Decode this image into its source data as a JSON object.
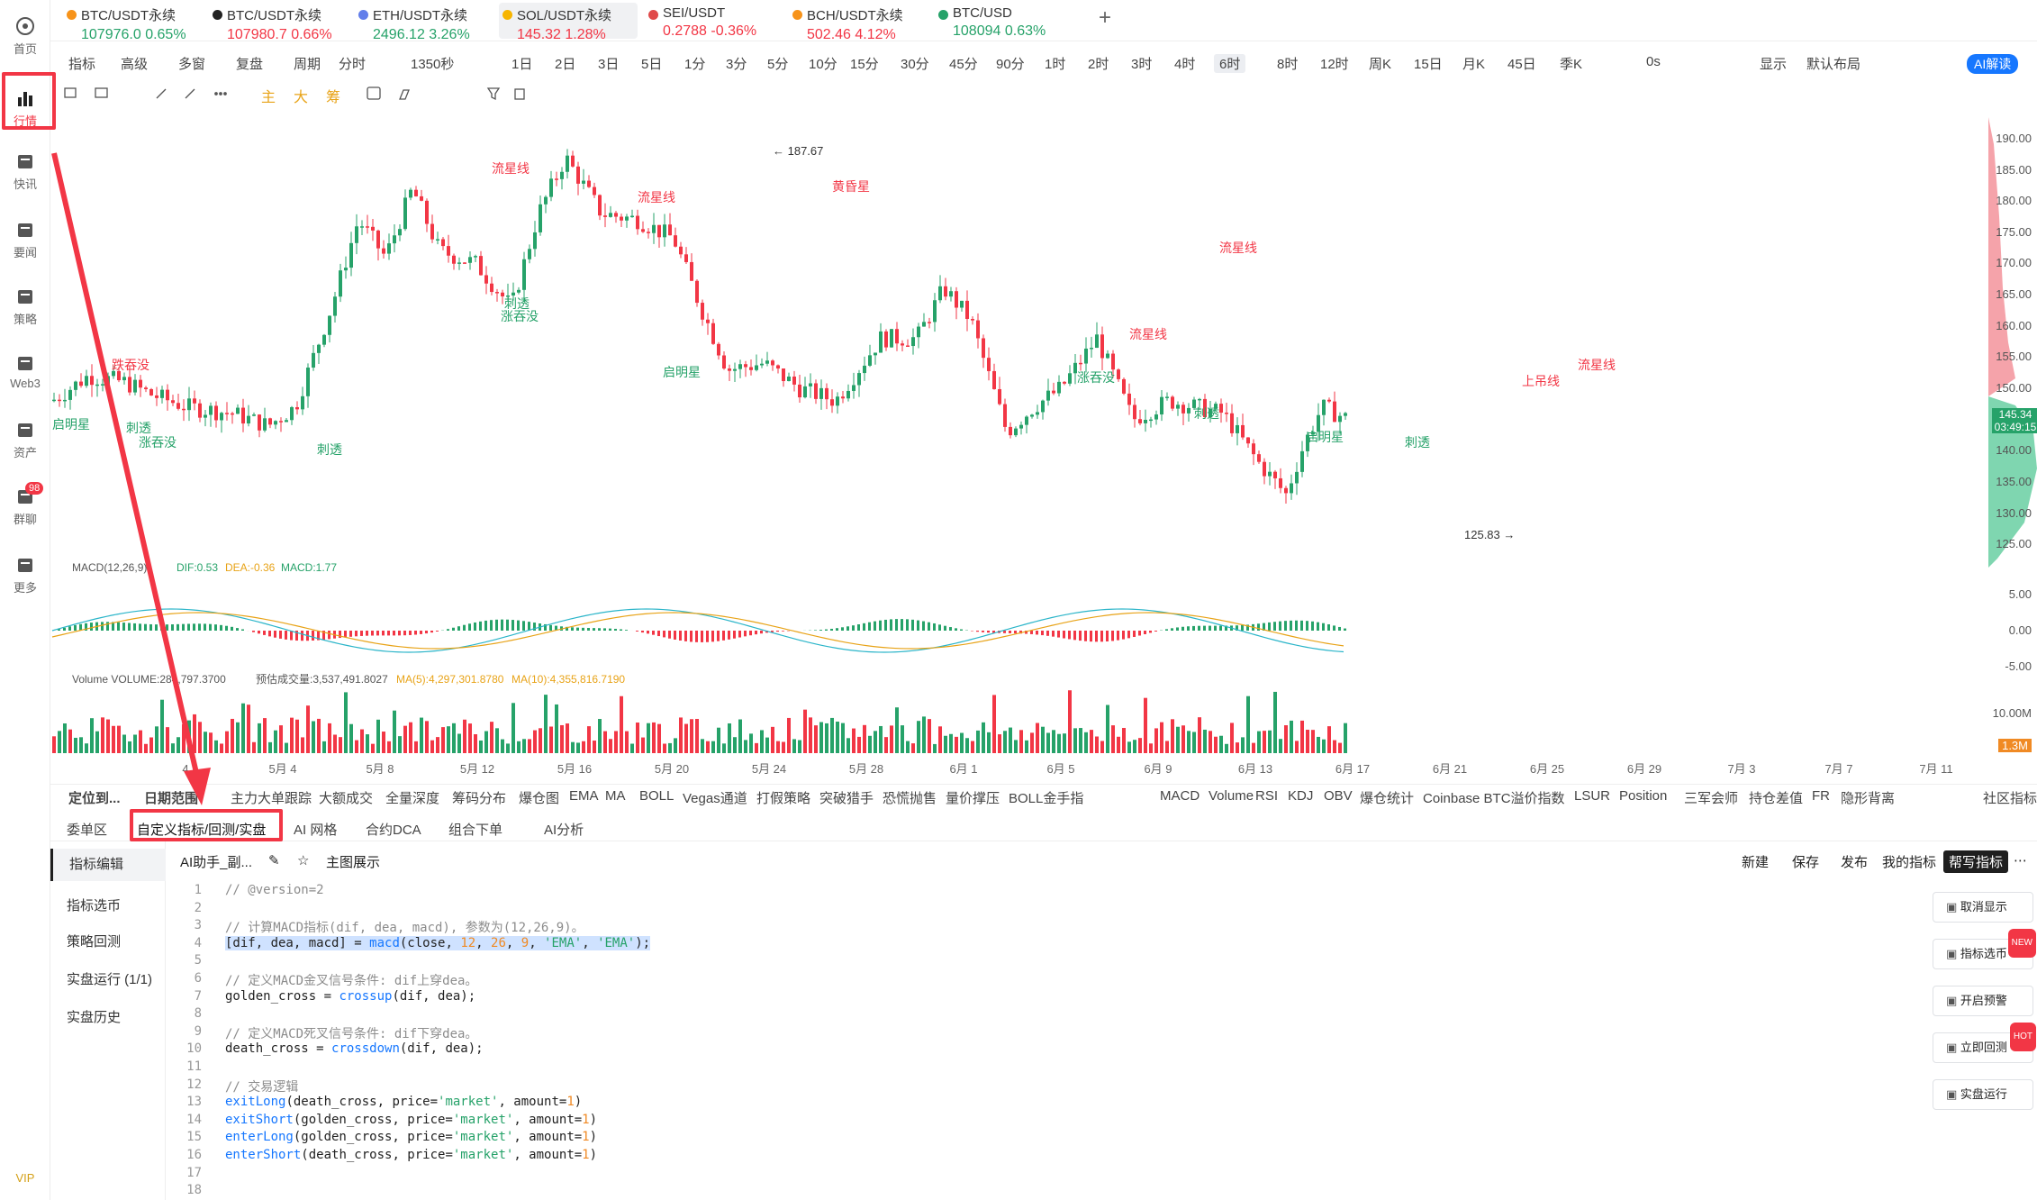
{
  "nav": {
    "items": [
      {
        "label": "首页",
        "icon": "home-icon"
      },
      {
        "label": "行情",
        "icon": "bar-chart-icon"
      },
      {
        "label": "快讯",
        "icon": "newsflash-icon"
      },
      {
        "label": "要闻",
        "icon": "news-icon"
      },
      {
        "label": "策略",
        "icon": "strategy-icon"
      },
      {
        "label": "Web3",
        "icon": "web3-icon"
      },
      {
        "label": "资产",
        "icon": "wallet-icon"
      },
      {
        "label": "群聊",
        "icon": "chat-icon"
      },
      {
        "label": "更多",
        "icon": "grid-icon"
      }
    ],
    "chat_badge": "98",
    "vip": "VIP"
  },
  "tickers": [
    {
      "name": "BTC/USDT永续",
      "price": "107976.0",
      "change": "0.65%",
      "dir": "up",
      "color": "#f7931a"
    },
    {
      "name": "BTC/USDT永续",
      "price": "107980.7",
      "change": "0.66%",
      "dir": "dn",
      "color": "#222222"
    },
    {
      "name": "ETH/USDT永续",
      "price": "2496.12",
      "change": "3.26%",
      "dir": "up",
      "color": "#627eea"
    },
    {
      "name": "SOL/USDT永续",
      "price": "145.32",
      "change": "1.28%",
      "dir": "dn",
      "color": "#f7b500"
    },
    {
      "name": "SEI/USDT",
      "price": "0.2788",
      "change": "-0.36%",
      "dir": "dn",
      "color": "#e04a4a"
    },
    {
      "name": "BCH/USDT永续",
      "price": "502.46",
      "change": "4.12%",
      "dir": "dn",
      "color": "#f7931a"
    },
    {
      "name": "BTC/USD",
      "price": "108094",
      "change": "0.63%",
      "dir": "up",
      "color": "#26a269"
    }
  ],
  "add_tab": "+",
  "toolbar1": {
    "left": [
      "指标",
      "高级",
      "多窗",
      "复盘",
      "周期",
      "分时",
      "1350秒",
      "1日",
      "2日",
      "3日",
      "5日",
      "1分",
      "3分",
      "5分",
      "10分",
      "15分",
      "30分",
      "45分",
      "90分",
      "1时",
      "2时",
      "3时",
      "4时",
      "6时",
      "8时",
      "12时",
      "周K",
      "15日",
      "月K",
      "45日",
      "季K"
    ],
    "active": "6时",
    "right": [
      "0s",
      "显示",
      "默认布局"
    ],
    "ai_label": "AI解读"
  },
  "toolbar2": {
    "main_labels": [
      "主",
      "大",
      "筹"
    ]
  },
  "price_axis": {
    "ticks": [
      "190.00",
      "185.00",
      "180.00",
      "175.00",
      "170.00",
      "165.00",
      "160.00",
      "155.00",
      "150.00",
      "145.34",
      "140.00",
      "135.00",
      "130.00",
      "125.00"
    ],
    "current_price": "145.34",
    "countdown": "03:49:15",
    "macd_ticks": [
      "5.00",
      "0.00",
      "-5.00"
    ],
    "vol_ticks": [
      "10.00M",
      "1.3M"
    ]
  },
  "high_label": "187.67",
  "low_label": "125.83",
  "dates": [
    "4",
    "5月 4",
    "5月 8",
    "5月 12",
    "5月 16",
    "5月 20",
    "5月 24",
    "5月 28",
    "6月 1",
    "6月 5",
    "6月 9",
    "6月 13",
    "6月 17",
    "6月 21",
    "6月 25",
    "6月 29",
    "7月 3",
    "7月 7",
    "7月 11"
  ],
  "patterns": [
    {
      "t": "跌吞没",
      "c": "dn"
    },
    {
      "t": "启明星",
      "c": "up"
    },
    {
      "t": "刺透",
      "c": "up"
    },
    {
      "t": "涨吞没",
      "c": "up"
    },
    {
      "t": "刺透",
      "c": "up"
    },
    {
      "t": "流星线",
      "c": "dn"
    },
    {
      "t": "刺透",
      "c": "up"
    },
    {
      "t": "涨吞没",
      "c": "up"
    },
    {
      "t": "流星线",
      "c": "dn"
    },
    {
      "t": "启明星",
      "c": "up"
    },
    {
      "t": "黄昏星",
      "c": "dn"
    },
    {
      "t": "流星线",
      "c": "dn"
    },
    {
      "t": "流星线",
      "c": "dn"
    },
    {
      "t": "涨吞没",
      "c": "up"
    },
    {
      "t": "刺透",
      "c": "up"
    },
    {
      "t": "启明星",
      "c": "up"
    },
    {
      "t": "刺透",
      "c": "up"
    },
    {
      "t": "上吊线",
      "c": "dn"
    },
    {
      "t": "流星线",
      "c": "dn"
    }
  ],
  "macd_legend": {
    "name": "MACD(12,26,9)",
    "dif": "DIF:0.53",
    "dea": "DEA:-0.36",
    "macd": "MACD:1.77"
  },
  "vol_legend": {
    "name": "Volume VOLUME:284,797.3700",
    "est": "预估成交量:3,537,491.8027",
    "ma5": "MA(5):4,297,301.8780",
    "ma10": "MA(10):4,355,816.7190"
  },
  "indicator_tabs_left": [
    "定位到...",
    "日期范围",
    "主力大单跟踪",
    "大额成交",
    "全量深度",
    "筹码分布",
    "爆仓图",
    "EMA",
    "MA",
    "BOLL",
    "Vegas通道",
    "打假策略",
    "突破猎手",
    "恐慌抛售",
    "量价撑压",
    "BOLL金手指"
  ],
  "indicator_tabs_right": [
    "MACD",
    "Volume",
    "RSI",
    "KDJ",
    "OBV",
    "爆仓统计",
    "Coinbase BTC溢价指数",
    "LSUR",
    "Position",
    "三军会师",
    "持仓差值",
    "FR",
    "隐形背离"
  ],
  "community": "社区指标",
  "bottom_tabs": [
    "委单区",
    "自定义指标/回测/实盘",
    "AI 网格",
    "合约DCA",
    "组合下单",
    "AI分析"
  ],
  "active_bottom_tab": "自定义指标/回测/实盘",
  "subside": [
    "指标编辑",
    "指标选币",
    "策略回测",
    "实盘运行 (1/1)",
    "实盘历史"
  ],
  "editor": {
    "file": "AI助手_副...",
    "view": "主图展示",
    "actions": [
      "新建",
      "保存",
      "发布",
      "我的指标"
    ],
    "primary": "帮写指标"
  },
  "code_lines": [
    [
      {
        "t": "// @version=2",
        "c": "cm"
      }
    ],
    [],
    [
      {
        "t": "// 计算MACD指标(dif, dea, macd), 参数为(12,26,9)。",
        "c": "cm"
      }
    ],
    [
      {
        "t": "[dif, dea, macd] = ",
        "c": "hl"
      },
      {
        "t": "macd",
        "c": "fn hl"
      },
      {
        "t": "(close, ",
        "c": "hl"
      },
      {
        "t": "12",
        "c": "num hl"
      },
      {
        "t": ", ",
        "c": "hl"
      },
      {
        "t": "26",
        "c": "num hl"
      },
      {
        "t": ", ",
        "c": "hl"
      },
      {
        "t": "9",
        "c": "num hl"
      },
      {
        "t": ", ",
        "c": "hl"
      },
      {
        "t": "'EMA'",
        "c": "str hl"
      },
      {
        "t": ", ",
        "c": "hl"
      },
      {
        "t": "'EMA'",
        "c": "str hl"
      },
      {
        "t": ");",
        "c": "hl"
      }
    ],
    [],
    [
      {
        "t": "// 定义MACD金叉信号条件: dif上穿dea。",
        "c": "cm"
      }
    ],
    [
      {
        "t": "golden_cross = ",
        "c": ""
      },
      {
        "t": "crossup",
        "c": "fn"
      },
      {
        "t": "(dif, dea);",
        "c": ""
      }
    ],
    [],
    [
      {
        "t": "// 定义MACD死叉信号条件: dif下穿dea。",
        "c": "cm"
      }
    ],
    [
      {
        "t": "death_cross = ",
        "c": ""
      },
      {
        "t": "crossdown",
        "c": "fn"
      },
      {
        "t": "(dif, dea);",
        "c": ""
      }
    ],
    [],
    [
      {
        "t": "// 交易逻辑",
        "c": "cm"
      }
    ],
    [
      {
        "t": "exitLong",
        "c": "fn"
      },
      {
        "t": "(death_cross, price=",
        "c": ""
      },
      {
        "t": "'market'",
        "c": "str"
      },
      {
        "t": ", amount=",
        "c": ""
      },
      {
        "t": "1",
        "c": "num"
      },
      {
        "t": ")",
        "c": ""
      }
    ],
    [
      {
        "t": "exitShort",
        "c": "fn"
      },
      {
        "t": "(golden_cross, price=",
        "c": ""
      },
      {
        "t": "'market'",
        "c": "str"
      },
      {
        "t": ", amount=",
        "c": ""
      },
      {
        "t": "1",
        "c": "num"
      },
      {
        "t": ")",
        "c": ""
      }
    ],
    [
      {
        "t": "enterLong",
        "c": "fn"
      },
      {
        "t": "(golden_cross, price=",
        "c": ""
      },
      {
        "t": "'market'",
        "c": "str"
      },
      {
        "t": ", amount=",
        "c": ""
      },
      {
        "t": "1",
        "c": "num"
      },
      {
        "t": ")",
        "c": ""
      }
    ],
    [
      {
        "t": "enterShort",
        "c": "fn"
      },
      {
        "t": "(death_cross, price=",
        "c": ""
      },
      {
        "t": "'market'",
        "c": "str"
      },
      {
        "t": ", amount=",
        "c": ""
      },
      {
        "t": "1",
        "c": "num"
      },
      {
        "t": ")",
        "c": ""
      }
    ],
    [],
    []
  ],
  "right_buttons": [
    {
      "label": "取消显示",
      "icon": "hide-icon"
    },
    {
      "label": "指标选币",
      "icon": "filter-icon",
      "badge": "NEW",
      "badge_color": "#f23645"
    },
    {
      "label": "开启预警",
      "icon": "bell-icon"
    },
    {
      "label": "立即回测",
      "icon": "backtest-icon",
      "badge": "HOT",
      "badge_color": "#f23645"
    },
    {
      "label": "实盘运行",
      "icon": "swap-icon"
    }
  ],
  "colors": {
    "up": "#26a269",
    "down": "#f23645",
    "macd_dif": "#2bb5c9",
    "macd_dea": "#e8a317",
    "annotation": "#f23645"
  }
}
